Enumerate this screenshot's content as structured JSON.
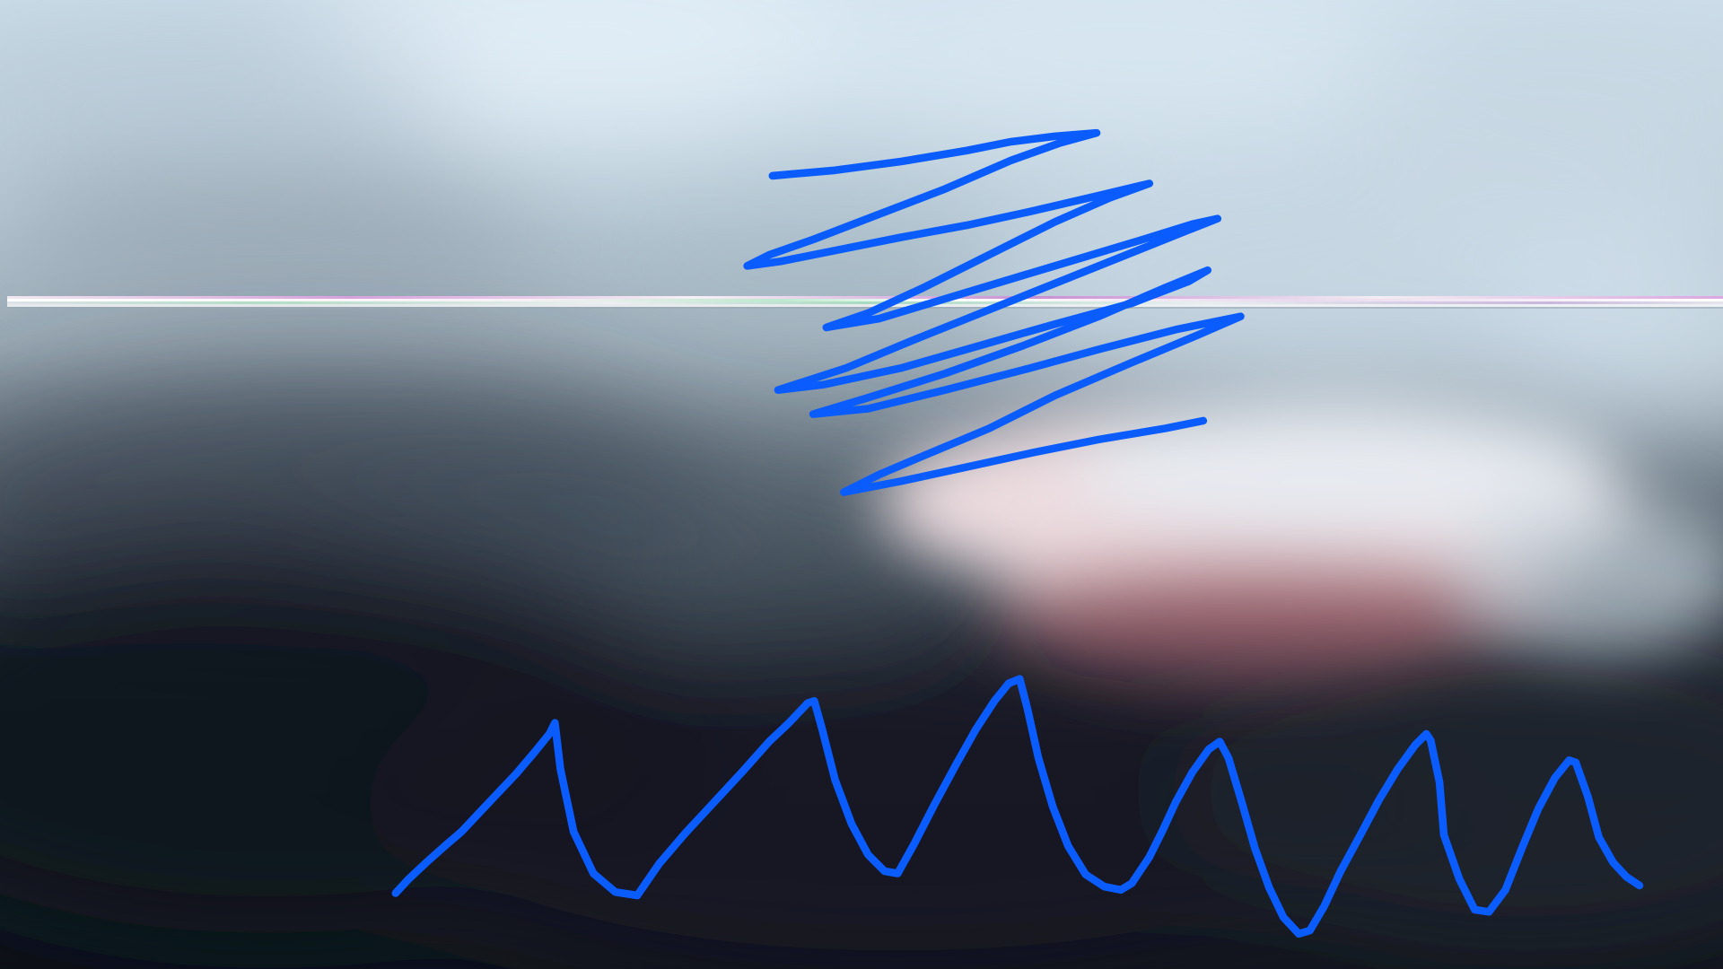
{
  "scene": {
    "description_tags": [
      "blurred-photo",
      "hand-drawn-scribble",
      "zigzag-stroke",
      "glitch-line"
    ]
  },
  "colors": {
    "sky_top": "#d6e6f1",
    "sky_mid": "#aebfcc",
    "cloud_gray": "#7d8b96",
    "ground_dark": "#121720",
    "ground_mid": "#3a4450",
    "pink_glow": "#f2dde0",
    "red_glow": "#a06470",
    "stroke_blue": "#0a5cff",
    "glitch_pink": "#d9a4e2",
    "glitch_white": "#f4f2f5",
    "glitch_green": "#b7e8c8"
  }
}
